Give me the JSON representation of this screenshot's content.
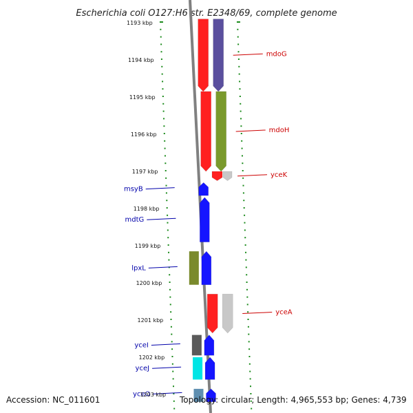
{
  "title": "Escherichia coli O127:H6 str. E2348/69, complete genome",
  "footer": {
    "accession": "Accession: NC_011601",
    "topology": "Topology: circular; Length: 4,965,553 bp; Genes: 4,739"
  },
  "ticks": [
    {
      "label": "1193 kbp",
      "kbp": 1193
    },
    {
      "label": "1194 kbp",
      "kbp": 1194
    },
    {
      "label": "1195 kbp",
      "kbp": 1195
    },
    {
      "label": "1196 kbp",
      "kbp": 1196
    },
    {
      "label": "1197 kbp",
      "kbp": 1197
    },
    {
      "label": "1198 kbp",
      "kbp": 1198
    },
    {
      "label": "1199 kbp",
      "kbp": 1199
    },
    {
      "label": "1200 kbp",
      "kbp": 1200
    },
    {
      "label": "1201 kbp",
      "kbp": 1201
    },
    {
      "label": "1202 kbp",
      "kbp": 1202
    },
    {
      "label": "1203 kbp",
      "kbp": 1203
    }
  ],
  "genes_forward": [
    {
      "name": "mdoG",
      "outer": "#5a4f9e",
      "inner": "#ff2020",
      "start": 1192.9,
      "end": 1194.85
    },
    {
      "name": "mdoH",
      "outer": "#7a9a2c",
      "inner": "#ff2020",
      "start": 1194.85,
      "end": 1197.0
    },
    {
      "name": "yceK",
      "outer": "#c8c8c8",
      "inner": "#ff2020",
      "start": 1197.0,
      "end": 1197.25
    },
    {
      "name": "yceA",
      "outer": "#c8c8c8",
      "inner": "#ff2020",
      "start": 1200.3,
      "end": 1201.35
    }
  ],
  "genes_reverse": [
    {
      "name": "msyB",
      "outer": "#1515ff",
      "inner": null,
      "start": 1197.3,
      "end": 1197.65
    },
    {
      "name": "mdtG",
      "outer": "#1515ff",
      "inner": null,
      "start": 1197.7,
      "end": 1198.9
    },
    {
      "name": "lpxL",
      "outer": "#1515ff",
      "inner": "#7a8a2c",
      "start": 1199.15,
      "end": 1200.05
    },
    {
      "name": "yceI",
      "outer": "#1515ff",
      "inner": "#5a5a5a",
      "start": 1201.4,
      "end": 1201.95
    },
    {
      "name": "yceJ",
      "outer": "#1515ff",
      "inner": "#00e5e5",
      "start": 1202.0,
      "end": 1202.6
    },
    {
      "name": "yceO",
      "outer": "#1515ff",
      "inner": "#5f8fb0",
      "start": 1202.85,
      "end": 1203.2
    }
  ],
  "colors": {
    "forward_label": "#cc0000",
    "reverse_label": "#0000aa",
    "backbone": "#808080",
    "ruler": "#1a8a1a"
  }
}
